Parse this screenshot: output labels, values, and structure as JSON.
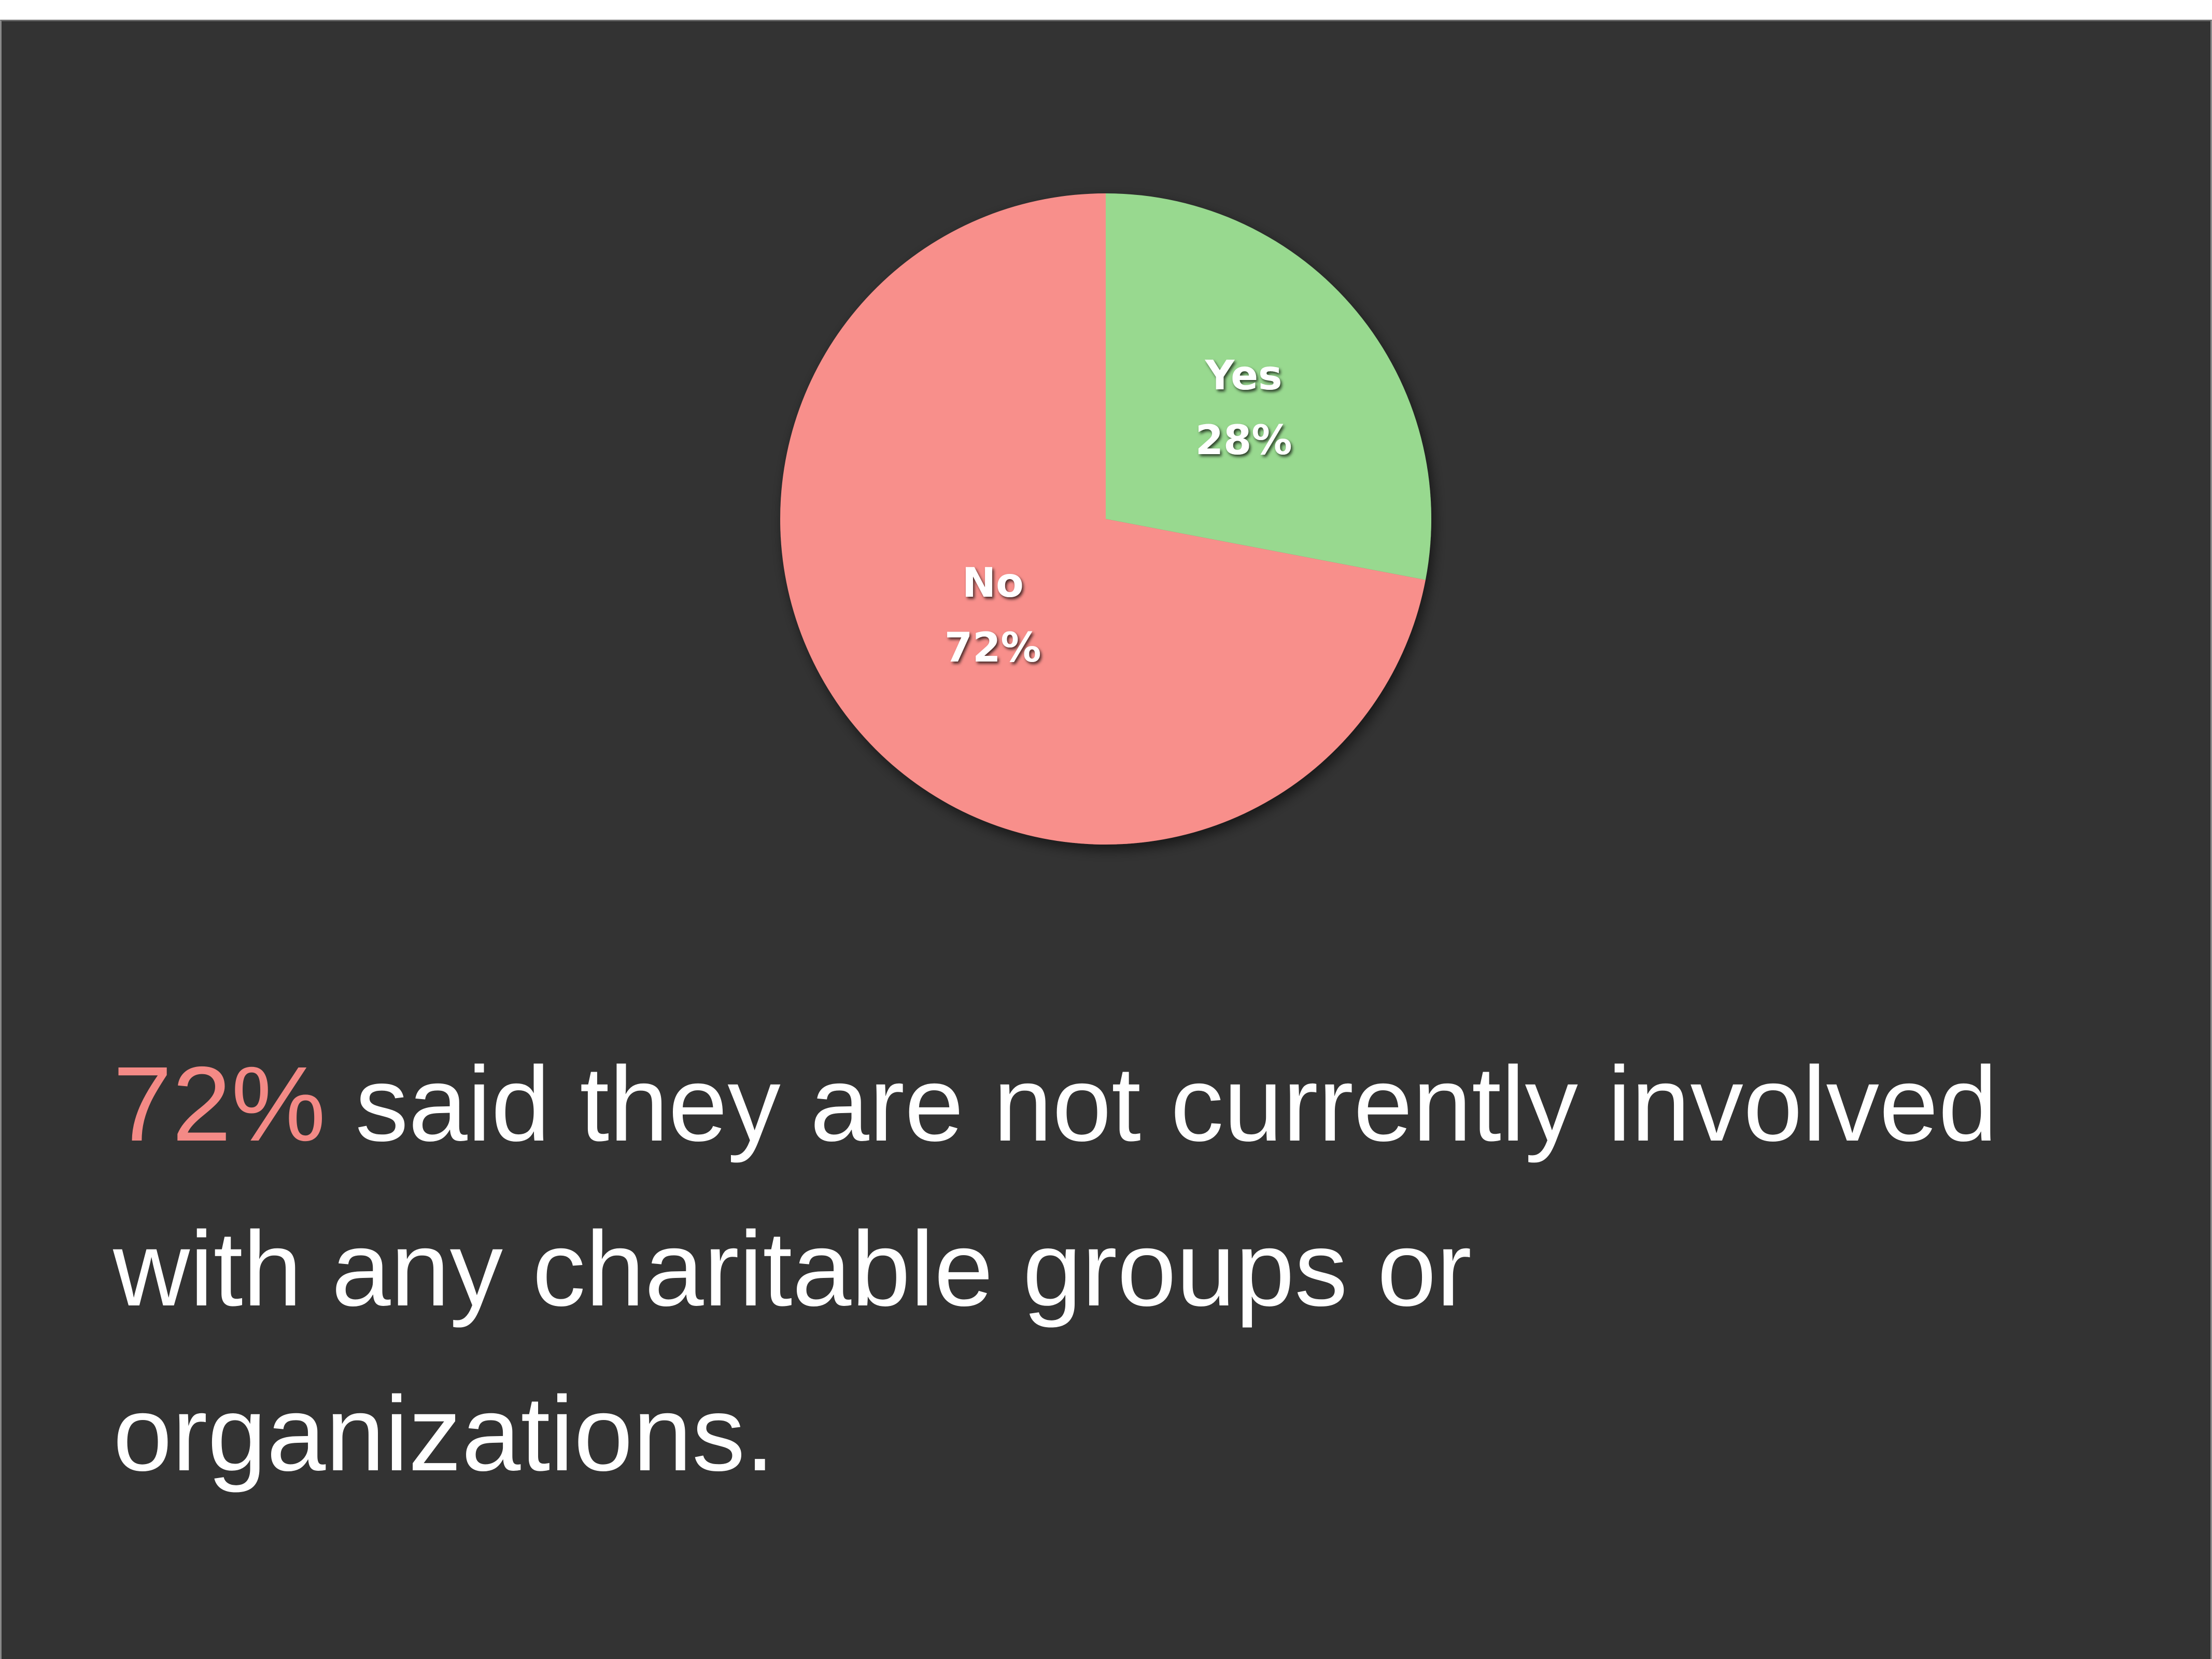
{
  "chart_data": {
    "type": "pie",
    "slices": [
      {
        "label": "Yes",
        "value": 28,
        "value_label": "28%",
        "color": "#98d98f"
      },
      {
        "label": "No",
        "value": 72,
        "value_label": "72%",
        "color": "#f88f8b"
      }
    ],
    "start_angle": "12 o'clock",
    "direction": "clockwise",
    "legend": "none",
    "data_labels": "inside slices"
  },
  "caption": {
    "highlight": "72%",
    "text": " said they are not currently involved with any charitable groups or organizations."
  },
  "colors": {
    "background": "#333333",
    "highlight": "#f48a86",
    "text": "#ffffff"
  }
}
